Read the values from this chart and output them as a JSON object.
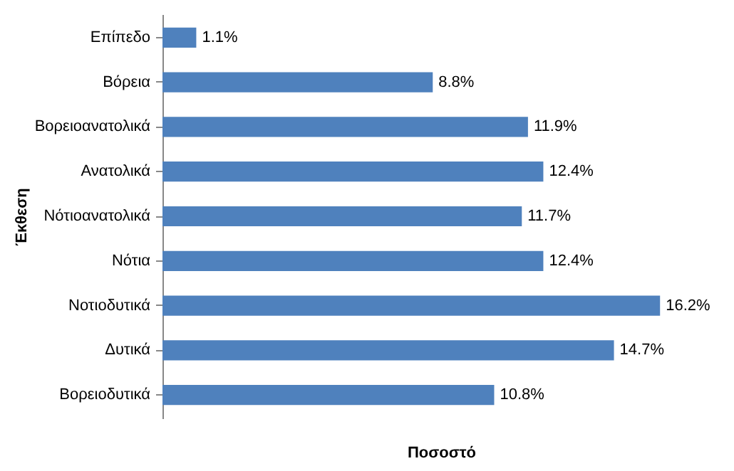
{
  "chart_data": {
    "type": "bar",
    "orientation": "horizontal",
    "xlabel": "Ποσοστό",
    "ylabel": "Έκθεση",
    "categories": [
      "Επίπεδο",
      "Βόρεια",
      "Βορειοανατολικά",
      "Ανατολικά",
      "Νότιοανατολικά",
      "Νότια",
      "Νοτιοδυτικά",
      "Δυτικά",
      "Βορειοδυτικά"
    ],
    "values": [
      1.1,
      8.8,
      11.9,
      12.4,
      11.7,
      12.4,
      16.2,
      14.7,
      10.8
    ],
    "value_labels": [
      "1.1%",
      "8.8%",
      "11.9%",
      "12.4%",
      "11.7%",
      "12.4%",
      "16.2%",
      "14.7%",
      "10.8%"
    ],
    "color": "#4f81bd"
  }
}
